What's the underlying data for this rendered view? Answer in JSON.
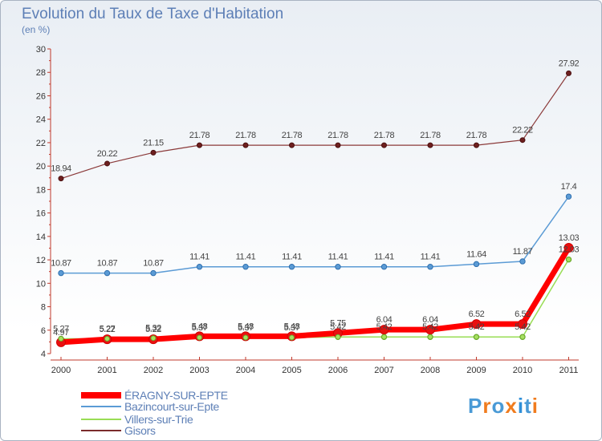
{
  "header": {
    "title": "Evolution du Taux de Taxe d'Habitation",
    "unit": "(en %)"
  },
  "logo": {
    "text": "Proxiti",
    "letter_colors": [
      "#4a9ad6",
      "#f07c1e",
      "#4a9ad6",
      "#f07c1e",
      "#2f8fd8",
      "#4a9ad6",
      "#f07c1e"
    ]
  },
  "chart_data": {
    "type": "line",
    "title": "Evolution du Taux de Taxe d'Habitation",
    "ylabel": "(en %)",
    "xlabel": "",
    "x": [
      "2000",
      "2001",
      "2002",
      "2003",
      "2004",
      "2005",
      "2006",
      "2007",
      "2008",
      "2009",
      "2010",
      "2011"
    ],
    "ylim": [
      4,
      30
    ],
    "yticks": [
      4,
      6,
      8,
      10,
      12,
      14,
      16,
      18,
      20,
      22,
      24,
      26,
      28,
      30
    ],
    "grid": false,
    "legend_position": "bottom-left",
    "series": [
      {
        "name": "ÉRAGNY-SUR-EPTE",
        "color": "#ff0000",
        "values": [
          4.97,
          5.22,
          5.22,
          5.48,
          5.48,
          5.48,
          5.75,
          6.04,
          6.04,
          6.52,
          6.52,
          13.03
        ],
        "labels": [
          "4.97",
          "5.22",
          "5.22",
          "5.48",
          "5.48",
          "5.48",
          "5.75",
          "6.04",
          "6.04",
          "6.52",
          "6.52",
          "13.03"
        ]
      },
      {
        "name": "Bazincourt-sur-Epte",
        "color": "#5b9bd5",
        "values": [
          10.87,
          10.87,
          10.87,
          11.41,
          11.41,
          11.41,
          11.41,
          11.41,
          11.41,
          11.64,
          11.87,
          17.4
        ],
        "labels": [
          "10.87",
          "10.87",
          "10.87",
          "11.41",
          "11.41",
          "11.41",
          "11.41",
          "11.41",
          "11.41",
          "11.64",
          "11.87",
          "17.4"
        ]
      },
      {
        "name": "Villers-sur-Trie",
        "color": "#99dd55",
        "values": [
          5.27,
          5.27,
          5.32,
          5.37,
          5.37,
          5.37,
          5.42,
          5.42,
          5.42,
          5.42,
          5.42,
          12.03
        ],
        "labels": [
          "5.27",
          "5.27",
          "5.32",
          "5.37",
          "5.37",
          "5.37",
          "5.42",
          "5.42",
          "5.42",
          "5.42",
          "5.42",
          "12.03"
        ]
      },
      {
        "name": "Gisors",
        "color": "#7b2c2c",
        "values": [
          18.94,
          20.22,
          21.15,
          21.78,
          21.78,
          21.78,
          21.78,
          21.78,
          21.78,
          21.78,
          22.22,
          27.92
        ],
        "labels": [
          "18.94",
          "20.22",
          "21.15",
          "21.78",
          "21.78",
          "21.78",
          "21.78",
          "21.78",
          "21.78",
          "21.78",
          "22.22",
          "27.92"
        ]
      }
    ]
  }
}
